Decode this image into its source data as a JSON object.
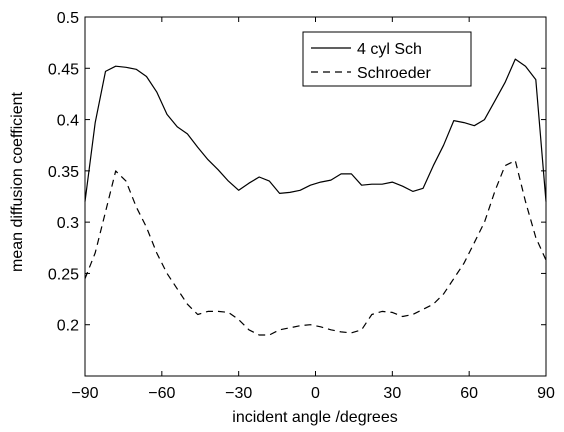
{
  "chart_data": {
    "type": "line",
    "title": "",
    "xlabel": "incident angle /degrees",
    "ylabel": "mean diffusion coefficient",
    "xlim": [
      -90,
      90
    ],
    "ylim": [
      0.15,
      0.5
    ],
    "xticks": [
      -90,
      -60,
      -30,
      0,
      30,
      60,
      90
    ],
    "xtick_labels": [
      "−90",
      "−60",
      "−30",
      "0",
      "30",
      "60",
      "90"
    ],
    "yticks": [
      0.2,
      0.25,
      0.3,
      0.35,
      0.4,
      0.45,
      0.5
    ],
    "ytick_labels": [
      "0.2",
      "0.25",
      "0.3",
      "0.35",
      "0.4",
      "0.45",
      "0.5"
    ],
    "grid": false,
    "legend_position": "top-right",
    "series": [
      {
        "name": "4 cyl Sch",
        "style": "solid",
        "color": "#000000",
        "x": [
          -90,
          -86,
          -82,
          -78,
          -74,
          -70,
          -66,
          -62,
          -58,
          -54,
          -50,
          -46,
          -42,
          -38,
          -34,
          -30,
          -26,
          -22,
          -18,
          -14,
          -10,
          -6,
          -2,
          2,
          6,
          10,
          14,
          18,
          22,
          26,
          30,
          34,
          38,
          42,
          46,
          50,
          54,
          58,
          62,
          66,
          70,
          74,
          78,
          82,
          86,
          90
        ],
        "y": [
          0.32,
          0.397,
          0.447,
          0.452,
          0.451,
          0.449,
          0.442,
          0.427,
          0.405,
          0.393,
          0.386,
          0.373,
          0.361,
          0.351,
          0.34,
          0.331,
          0.338,
          0.344,
          0.34,
          0.328,
          0.329,
          0.331,
          0.336,
          0.339,
          0.341,
          0.347,
          0.347,
          0.336,
          0.337,
          0.337,
          0.339,
          0.335,
          0.33,
          0.333,
          0.355,
          0.375,
          0.399,
          0.397,
          0.394,
          0.4,
          0.418,
          0.436,
          0.459,
          0.452,
          0.439,
          0.32
        ]
      },
      {
        "name": "Schroeder",
        "style": "dashed",
        "color": "#000000",
        "x": [
          -90,
          -86,
          -82,
          -78,
          -74,
          -70,
          -66,
          -62,
          -58,
          -54,
          -50,
          -46,
          -42,
          -38,
          -34,
          -30,
          -26,
          -22,
          -18,
          -14,
          -10,
          -6,
          -2,
          2,
          6,
          10,
          14,
          18,
          22,
          26,
          30,
          34,
          38,
          42,
          46,
          50,
          54,
          58,
          62,
          66,
          70,
          74,
          78,
          82,
          86,
          90
        ],
        "y": [
          0.245,
          0.27,
          0.31,
          0.35,
          0.34,
          0.315,
          0.295,
          0.27,
          0.25,
          0.235,
          0.22,
          0.21,
          0.213,
          0.213,
          0.212,
          0.205,
          0.195,
          0.19,
          0.19,
          0.195,
          0.197,
          0.199,
          0.2,
          0.198,
          0.195,
          0.193,
          0.192,
          0.195,
          0.21,
          0.213,
          0.212,
          0.208,
          0.21,
          0.215,
          0.22,
          0.23,
          0.245,
          0.26,
          0.28,
          0.3,
          0.33,
          0.355,
          0.36,
          0.32,
          0.285,
          0.263
        ]
      }
    ]
  }
}
